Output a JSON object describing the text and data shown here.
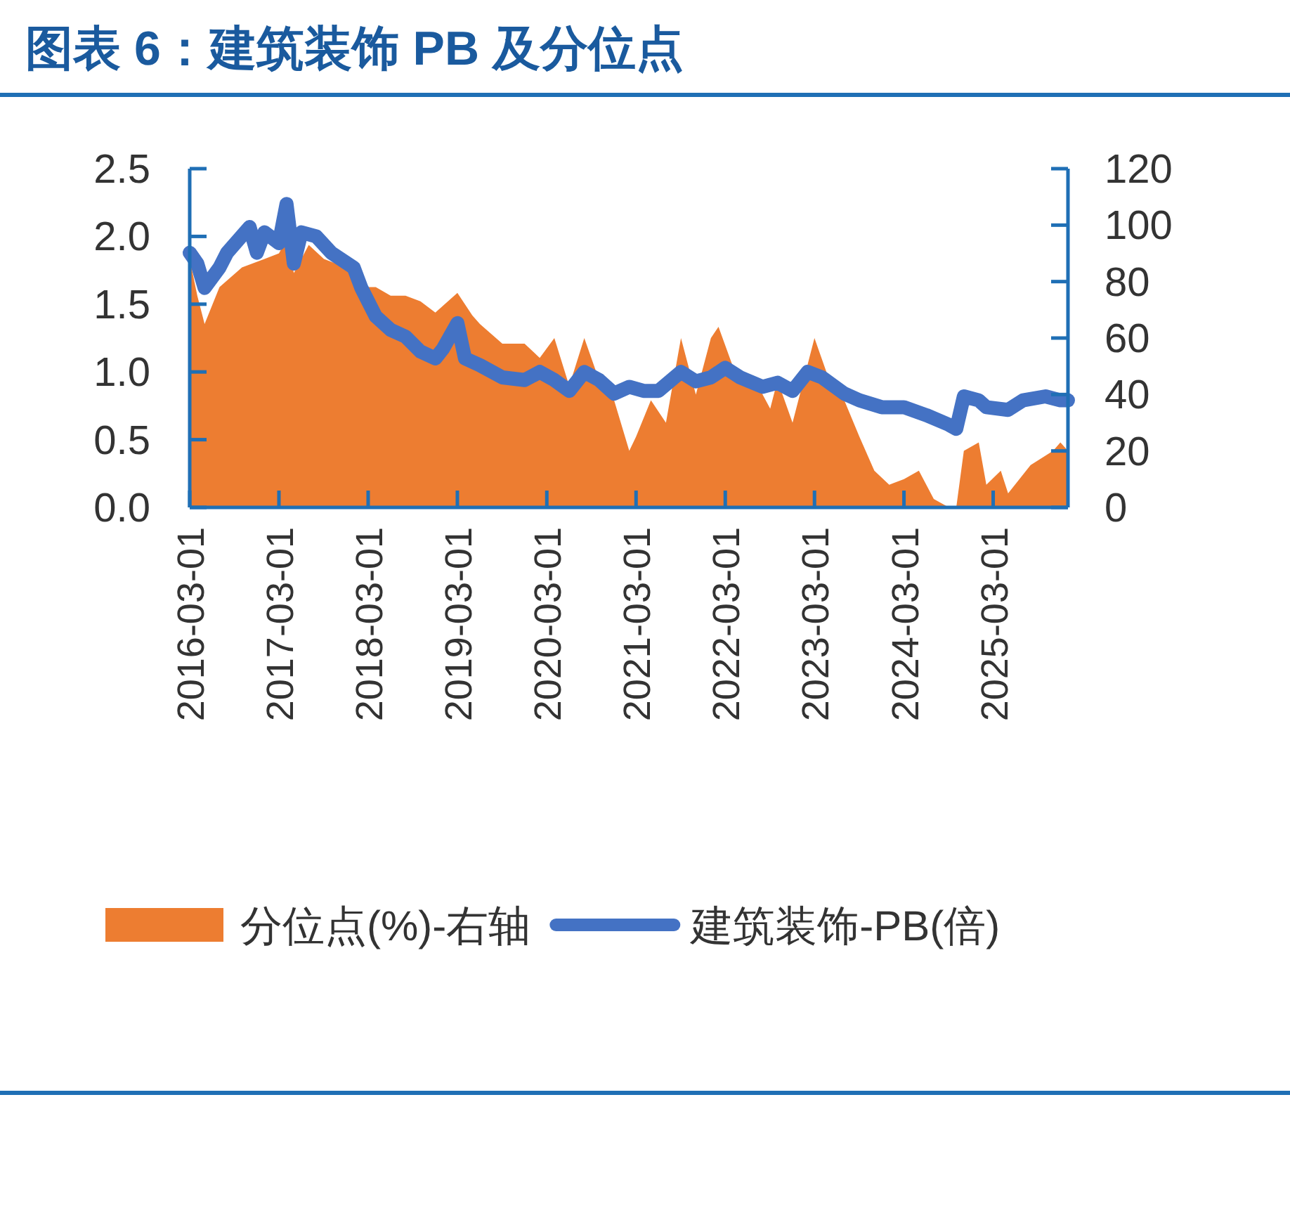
{
  "chart_data": {
    "type": "line",
    "title": "图表 6：建筑装饰 PB 及分位点",
    "xlim": [
      "2016-03",
      "2026-01"
    ],
    "xticks": [
      "2016-03-01",
      "2017-03-01",
      "2018-03-01",
      "2019-03-01",
      "2020-03-01",
      "2021-03-01",
      "2022-03-01",
      "2023-03-01",
      "2024-03-01",
      "2025-03-01"
    ],
    "ylim": [
      0,
      2.5
    ],
    "yticks": [
      {
        "value": 0,
        "label": "0.0"
      },
      {
        "value": 0.5,
        "label": "0.5"
      },
      {
        "value": 1,
        "label": "1.0"
      },
      {
        "value": 1.5,
        "label": "1.5"
      },
      {
        "value": 2,
        "label": "2.0"
      },
      {
        "value": 2.5,
        "label": "2.5"
      }
    ],
    "y2lim": [
      0,
      120
    ],
    "y2ticks": [
      0,
      20,
      40,
      60,
      80,
      100,
      120
    ],
    "legend": "bottom",
    "series": [
      {
        "name": "分位点(%)-右轴",
        "type": "area",
        "axis": "y2",
        "color": "#ed7d31",
        "x": [
          "2016-03",
          "2016-04",
          "2016-05",
          "2016-07",
          "2016-10",
          "2017-01",
          "2017-03",
          "2017-04",
          "2017-05",
          "2017-07",
          "2017-09",
          "2017-12",
          "2018-02",
          "2018-04",
          "2018-06",
          "2018-08",
          "2018-10",
          "2018-12",
          "2019-03",
          "2019-05",
          "2019-06",
          "2019-09",
          "2019-12",
          "2020-02",
          "2020-04",
          "2020-06",
          "2020-08",
          "2020-10",
          "2020-12",
          "2021-02",
          "2021-03",
          "2021-05",
          "2021-07",
          "2021-09",
          "2021-11",
          "2022-01",
          "2022-02",
          "2022-04",
          "2022-07",
          "2022-09",
          "2022-10",
          "2022-12",
          "2023-03",
          "2023-05",
          "2023-07",
          "2023-09",
          "2023-11",
          "2024-01",
          "2024-03",
          "2024-05",
          "2024-07",
          "2024-09",
          "2024-10",
          "2024-11",
          "2025-01",
          "2025-02",
          "2025-04",
          "2025-05",
          "2025-08",
          "2025-11",
          "2025-12",
          "2026-01"
        ],
        "values": [
          88,
          75,
          65,
          78,
          85,
          88,
          90,
          95,
          83,
          93,
          88,
          85,
          78,
          78,
          75,
          75,
          73,
          69,
          76,
          68,
          65,
          58,
          58,
          53,
          60,
          43,
          60,
          45,
          38,
          20,
          25,
          38,
          30,
          60,
          40,
          60,
          64,
          50,
          45,
          35,
          45,
          30,
          60,
          45,
          38,
          25,
          13,
          8,
          10,
          13,
          3,
          0,
          0,
          20,
          23,
          8,
          13,
          5,
          15,
          20,
          23,
          20
        ]
      },
      {
        "name": "建筑装饰-PB(倍)",
        "color": "#4472c4",
        "x": [
          "2016-03",
          "2016-04",
          "2016-05",
          "2016-07",
          "2016-08",
          "2016-11",
          "2016-12",
          "2017-01",
          "2017-03",
          "2017-04",
          "2017-05",
          "2017-06",
          "2017-08",
          "2017-10",
          "2018-01",
          "2018-02",
          "2018-04",
          "2018-06",
          "2018-08",
          "2018-10",
          "2018-12",
          "2019-01",
          "2019-03",
          "2019-04",
          "2019-06",
          "2019-09",
          "2019-12",
          "2020-02",
          "2020-04",
          "2020-06",
          "2020-08",
          "2020-10",
          "2020-12",
          "2021-02",
          "2021-04",
          "2021-06",
          "2021-09",
          "2021-11",
          "2022-01",
          "2022-03",
          "2022-05",
          "2022-08",
          "2022-10",
          "2022-12",
          "2023-02",
          "2023-04",
          "2023-07",
          "2023-09",
          "2023-12",
          "2024-03",
          "2024-06",
          "2024-09",
          "2024-10",
          "2024-11",
          "2025-01",
          "2025-02",
          "2025-05",
          "2025-07",
          "2025-10",
          "2025-12",
          "2026-01"
        ],
        "values": [
          1.88,
          1.8,
          1.62,
          1.77,
          1.88,
          2.07,
          1.88,
          2.03,
          1.95,
          2.24,
          1.8,
          2.03,
          2.0,
          1.88,
          1.77,
          1.62,
          1.41,
          1.31,
          1.26,
          1.15,
          1.1,
          1.17,
          1.36,
          1.1,
          1.05,
          0.96,
          0.94,
          1.0,
          0.94,
          0.86,
          1.0,
          0.94,
          0.84,
          0.89,
          0.86,
          0.86,
          1.0,
          0.93,
          0.96,
          1.03,
          0.96,
          0.89,
          0.92,
          0.86,
          1.0,
          0.96,
          0.84,
          0.79,
          0.74,
          0.74,
          0.68,
          0.61,
          0.58,
          0.82,
          0.79,
          0.74,
          0.72,
          0.79,
          0.82,
          0.79,
          0.79
        ]
      }
    ]
  }
}
